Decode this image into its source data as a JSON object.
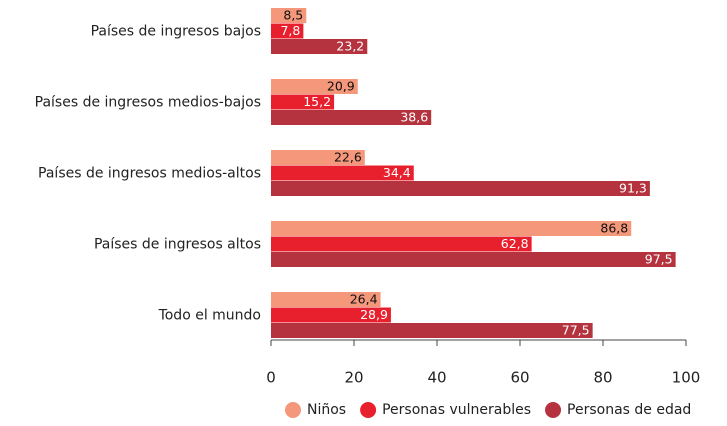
{
  "chart_data": {
    "type": "bar",
    "orientation": "horizontal",
    "categories": [
      "Países de ingresos bajos",
      "Países de ingresos medios-bajos",
      "Países de ingresos medios-altos",
      "Países de ingresos altos",
      "Todo el mundo"
    ],
    "series": [
      {
        "name": "Niños",
        "color": "#f4977a",
        "values": [
          8.5,
          20.9,
          22.6,
          86.8,
          26.4
        ],
        "value_labels": [
          "8,5",
          "20,9",
          "22,6",
          "86,8",
          "26,4"
        ]
      },
      {
        "name": "Personas vulnerables",
        "color": "#e8202e",
        "values": [
          7.8,
          15.2,
          34.4,
          62.8,
          28.9
        ],
        "value_labels": [
          "7,8",
          "15,2",
          "34,4",
          "62,8",
          "28,9"
        ]
      },
      {
        "name": "Personas de edad",
        "color": "#b5333f",
        "values": [
          23.2,
          38.6,
          91.3,
          97.5,
          77.5
        ],
        "value_labels": [
          "23,2",
          "38,6",
          "91,3",
          "97,5",
          "77,5"
        ]
      }
    ],
    "xlim": [
      0,
      100
    ],
    "xticks": [
      0,
      20,
      40,
      60,
      80,
      100
    ],
    "legend": "bottom"
  }
}
